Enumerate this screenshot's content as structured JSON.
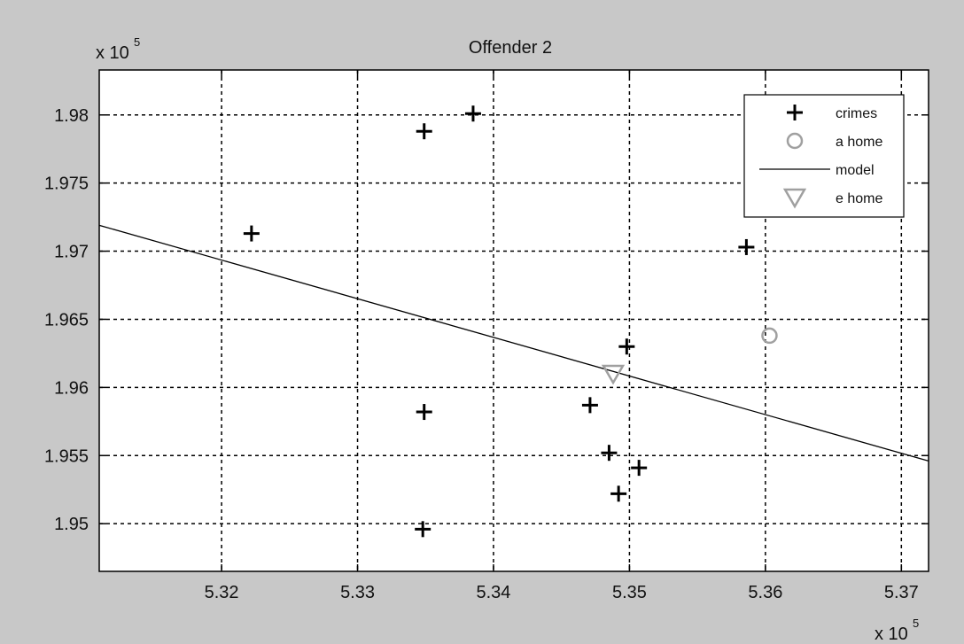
{
  "chart_data": {
    "type": "scatter",
    "title": "Offender 2",
    "xlabel": "",
    "ylabel": "",
    "x_multiplier": {
      "base": "x 10",
      "exp": "5"
    },
    "y_multiplier": {
      "base": "x 10",
      "exp": "5"
    },
    "xlim": [
      5.311,
      5.372
    ],
    "ylim": [
      1.9465,
      1.9833
    ],
    "xticks": [
      5.32,
      5.33,
      5.34,
      5.35,
      5.36,
      5.37
    ],
    "xtick_labels": [
      "5.32",
      "5.33",
      "5.34",
      "5.35",
      "5.36",
      "5.37"
    ],
    "yticks": [
      1.95,
      1.955,
      1.96,
      1.965,
      1.97,
      1.975,
      1.98
    ],
    "ytick_labels": [
      "1.95",
      "1.955",
      "1.96",
      "1.965",
      "1.97",
      "1.975",
      "1.98"
    ],
    "grid": true,
    "legend_position": "top-right",
    "series": [
      {
        "name": "crimes",
        "marker": "plus",
        "color": "#000000",
        "points": [
          [
            5.3222,
            1.9713
          ],
          [
            5.3349,
            1.9788
          ],
          [
            5.3385,
            1.9801
          ],
          [
            5.3349,
            1.9582
          ],
          [
            5.3348,
            1.9496
          ],
          [
            5.3471,
            1.9587
          ],
          [
            5.3485,
            1.9552
          ],
          [
            5.3492,
            1.9522
          ],
          [
            5.3498,
            1.963
          ],
          [
            5.3507,
            1.9541
          ],
          [
            5.3586,
            1.9703
          ]
        ]
      },
      {
        "name": "a home",
        "marker": "circle",
        "color": "#a0a0a0",
        "points": [
          [
            5.3603,
            1.9638
          ]
        ]
      },
      {
        "name": "model",
        "marker": "line",
        "color": "#000000",
        "points": [
          [
            5.311,
            1.9719
          ],
          [
            5.372,
            1.9546
          ]
        ]
      },
      {
        "name": "e home",
        "marker": "triangle-down",
        "color": "#a0a0a0",
        "points": [
          [
            5.3488,
            1.961
          ]
        ]
      }
    ]
  }
}
